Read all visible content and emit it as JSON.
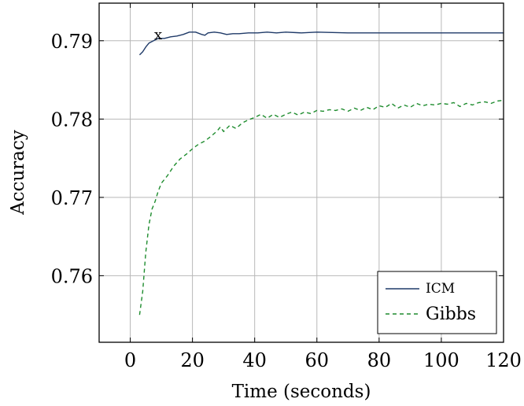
{
  "chart_data": {
    "type": "line",
    "title": "",
    "xlabel": "Time (seconds)",
    "ylabel": "Accuracy",
    "xlim": [
      -10,
      120
    ],
    "ylim": [
      0.7515,
      0.7948
    ],
    "xticks": [
      0,
      20,
      40,
      60,
      80,
      100,
      120
    ],
    "yticks": [
      0.76,
      0.77,
      0.78,
      0.79
    ],
    "xtick_labels": [
      "0",
      "20",
      "40",
      "60",
      "80",
      "100",
      "120"
    ],
    "ytick_labels": [
      "0.76",
      "0.77",
      "0.78",
      "0.79"
    ],
    "grid": true,
    "legend_position": "bottom-right",
    "series": [
      {
        "name": "ICM",
        "color": "#1f3a68",
        "style": "solid",
        "points": [
          [
            3,
            0.7882
          ],
          [
            4,
            0.7886
          ],
          [
            5,
            0.7892
          ],
          [
            6,
            0.7897
          ],
          [
            7,
            0.7899
          ],
          [
            9,
            0.7903
          ],
          [
            11,
            0.7903
          ],
          [
            13,
            0.7905
          ],
          [
            15,
            0.7906
          ],
          [
            17,
            0.7908
          ],
          [
            19,
            0.7911
          ],
          [
            21,
            0.7911
          ],
          [
            23,
            0.7908
          ],
          [
            24,
            0.7907
          ],
          [
            25,
            0.791
          ],
          [
            27,
            0.7911
          ],
          [
            29,
            0.791
          ],
          [
            31,
            0.7908
          ],
          [
            33,
            0.7909
          ],
          [
            35,
            0.7909
          ],
          [
            38,
            0.791
          ],
          [
            41,
            0.791
          ],
          [
            44,
            0.7911
          ],
          [
            47,
            0.791
          ],
          [
            50,
            0.7911
          ],
          [
            55,
            0.791
          ],
          [
            60,
            0.7911
          ],
          [
            70,
            0.791
          ],
          [
            80,
            0.791
          ],
          [
            90,
            0.791
          ],
          [
            100,
            0.791
          ],
          [
            110,
            0.791
          ],
          [
            120,
            0.791
          ]
        ]
      },
      {
        "name": "Gibbs",
        "color": "#1e8c2e",
        "style": "dashed",
        "points": [
          [
            3,
            0.755
          ],
          [
            4,
            0.758
          ],
          [
            5,
            0.763
          ],
          [
            6,
            0.7665
          ],
          [
            7,
            0.7685
          ],
          [
            8,
            0.7695
          ],
          [
            9,
            0.7708
          ],
          [
            10,
            0.7718
          ],
          [
            12,
            0.7728
          ],
          [
            14,
            0.774
          ],
          [
            16,
            0.7749
          ],
          [
            18,
            0.7755
          ],
          [
            20,
            0.7762
          ],
          [
            22,
            0.7768
          ],
          [
            24,
            0.7772
          ],
          [
            26,
            0.7778
          ],
          [
            28,
            0.7785
          ],
          [
            29,
            0.779
          ],
          [
            30,
            0.7784
          ],
          [
            32,
            0.7792
          ],
          [
            34,
            0.7788
          ],
          [
            36,
            0.7795
          ],
          [
            38,
            0.7799
          ],
          [
            40,
            0.7802
          ],
          [
            42,
            0.7806
          ],
          [
            44,
            0.7801
          ],
          [
            46,
            0.7806
          ],
          [
            48,
            0.7802
          ],
          [
            50,
            0.7806
          ],
          [
            52,
            0.7809
          ],
          [
            54,
            0.7805
          ],
          [
            56,
            0.7809
          ],
          [
            58,
            0.7807
          ],
          [
            60,
            0.7811
          ],
          [
            62,
            0.781
          ],
          [
            64,
            0.7812
          ],
          [
            66,
            0.7811
          ],
          [
            68,
            0.7813
          ],
          [
            70,
            0.781
          ],
          [
            72,
            0.7814
          ],
          [
            74,
            0.7811
          ],
          [
            76,
            0.7815
          ],
          [
            78,
            0.7812
          ],
          [
            80,
            0.7817
          ],
          [
            82,
            0.7815
          ],
          [
            84,
            0.782
          ],
          [
            86,
            0.7814
          ],
          [
            88,
            0.7818
          ],
          [
            90,
            0.7815
          ],
          [
            92,
            0.782
          ],
          [
            94,
            0.7817
          ],
          [
            96,
            0.7819
          ],
          [
            98,
            0.7818
          ],
          [
            100,
            0.782
          ],
          [
            102,
            0.7819
          ],
          [
            104,
            0.7821
          ],
          [
            106,
            0.7816
          ],
          [
            108,
            0.782
          ],
          [
            110,
            0.7818
          ],
          [
            112,
            0.7821
          ],
          [
            114,
            0.7822
          ],
          [
            116,
            0.782
          ],
          [
            118,
            0.7823
          ],
          [
            120,
            0.7824
          ]
        ]
      }
    ],
    "annotations": [
      {
        "text": "x",
        "x": 9,
        "y": 0.7903
      }
    ]
  }
}
